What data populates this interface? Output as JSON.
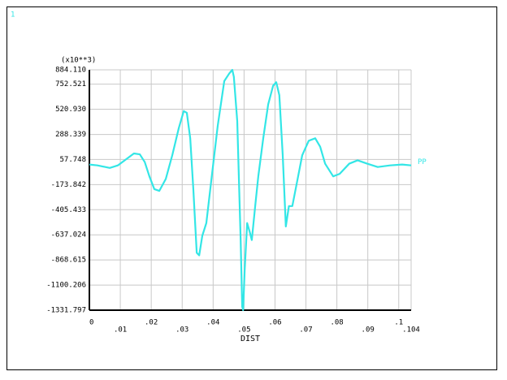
{
  "chart_data": {
    "type": "line",
    "window_label": "1",
    "y_multiplier": "(x10**3)",
    "x_label": "DIST",
    "x": [
      0,
      0.0026,
      0.0066,
      0.0092,
      0.0118,
      0.0144,
      0.0163,
      0.0179,
      0.0194,
      0.021,
      0.0226,
      0.0247,
      0.0268,
      0.0289,
      0.0305,
      0.0315,
      0.0326,
      0.0336,
      0.0347,
      0.0355,
      0.0365,
      0.0378,
      0.0394,
      0.0415,
      0.0436,
      0.0452,
      0.0462,
      0.0467,
      0.0478,
      0.0489,
      0.0494,
      0.0497,
      0.0502,
      0.051,
      0.0518,
      0.0525,
      0.0536,
      0.0546,
      0.0562,
      0.0578,
      0.0594,
      0.0604,
      0.0614,
      0.0625,
      0.0635,
      0.0645,
      0.0656,
      0.0672,
      0.0688,
      0.0709,
      0.073,
      0.0746,
      0.0762,
      0.0788,
      0.0809,
      0.084,
      0.0867,
      0.0898,
      0.0932,
      0.0972,
      0.1011,
      0.104
    ],
    "series": [
      {
        "name": "PP",
        "color": "#33e6e6",
        "values": [
          11,
          3,
          -20,
          3,
          58,
          113,
          105,
          34,
          -98,
          -216,
          -232,
          -122,
          97,
          347,
          504,
          488,
          253,
          -216,
          -803,
          -826,
          -646,
          -529,
          -138,
          371,
          780,
          850,
          884.11,
          820,
          410,
          -685,
          -1300,
          -1331.797,
          -960,
          -529,
          -607,
          -685,
          -372,
          -98,
          253,
          566,
          738,
          770,
          650,
          97,
          -560,
          -372,
          -372,
          -138,
          97,
          230,
          253,
          175,
          19,
          -98,
          -75,
          19,
          50,
          19,
          -12,
          3,
          11,
          3
        ]
      }
    ],
    "xlim": [
      0,
      0.104
    ],
    "xticks": [
      0,
      {
        "value": 0.01,
        "label": ".01"
      },
      {
        "value": 0.02,
        "label": ".02"
      },
      {
        "value": 0.03,
        "label": ".03"
      },
      {
        "value": 0.04,
        "label": ".04"
      },
      {
        "value": 0.05,
        "label": ".05"
      },
      {
        "value": 0.06,
        "label": ".06"
      },
      {
        "value": 0.07,
        "label": ".07"
      },
      {
        "value": 0.08,
        "label": ".08"
      },
      {
        "value": 0.09,
        "label": ".09"
      },
      {
        "value": 0.1,
        "label": ".1"
      },
      {
        "value": 0.104,
        "label": ".104"
      }
    ],
    "ylim": [
      -1331.797,
      884.11
    ],
    "yticks": [
      {
        "value": 884.11,
        "label": "884.110"
      },
      752.521,
      {
        "value": 520.93,
        "label": "520.930"
      },
      288.339,
      57.748,
      -173.842,
      -405.433,
      -637.024,
      -868.615,
      -1100.206,
      -1331.797
    ],
    "grid": true
  }
}
